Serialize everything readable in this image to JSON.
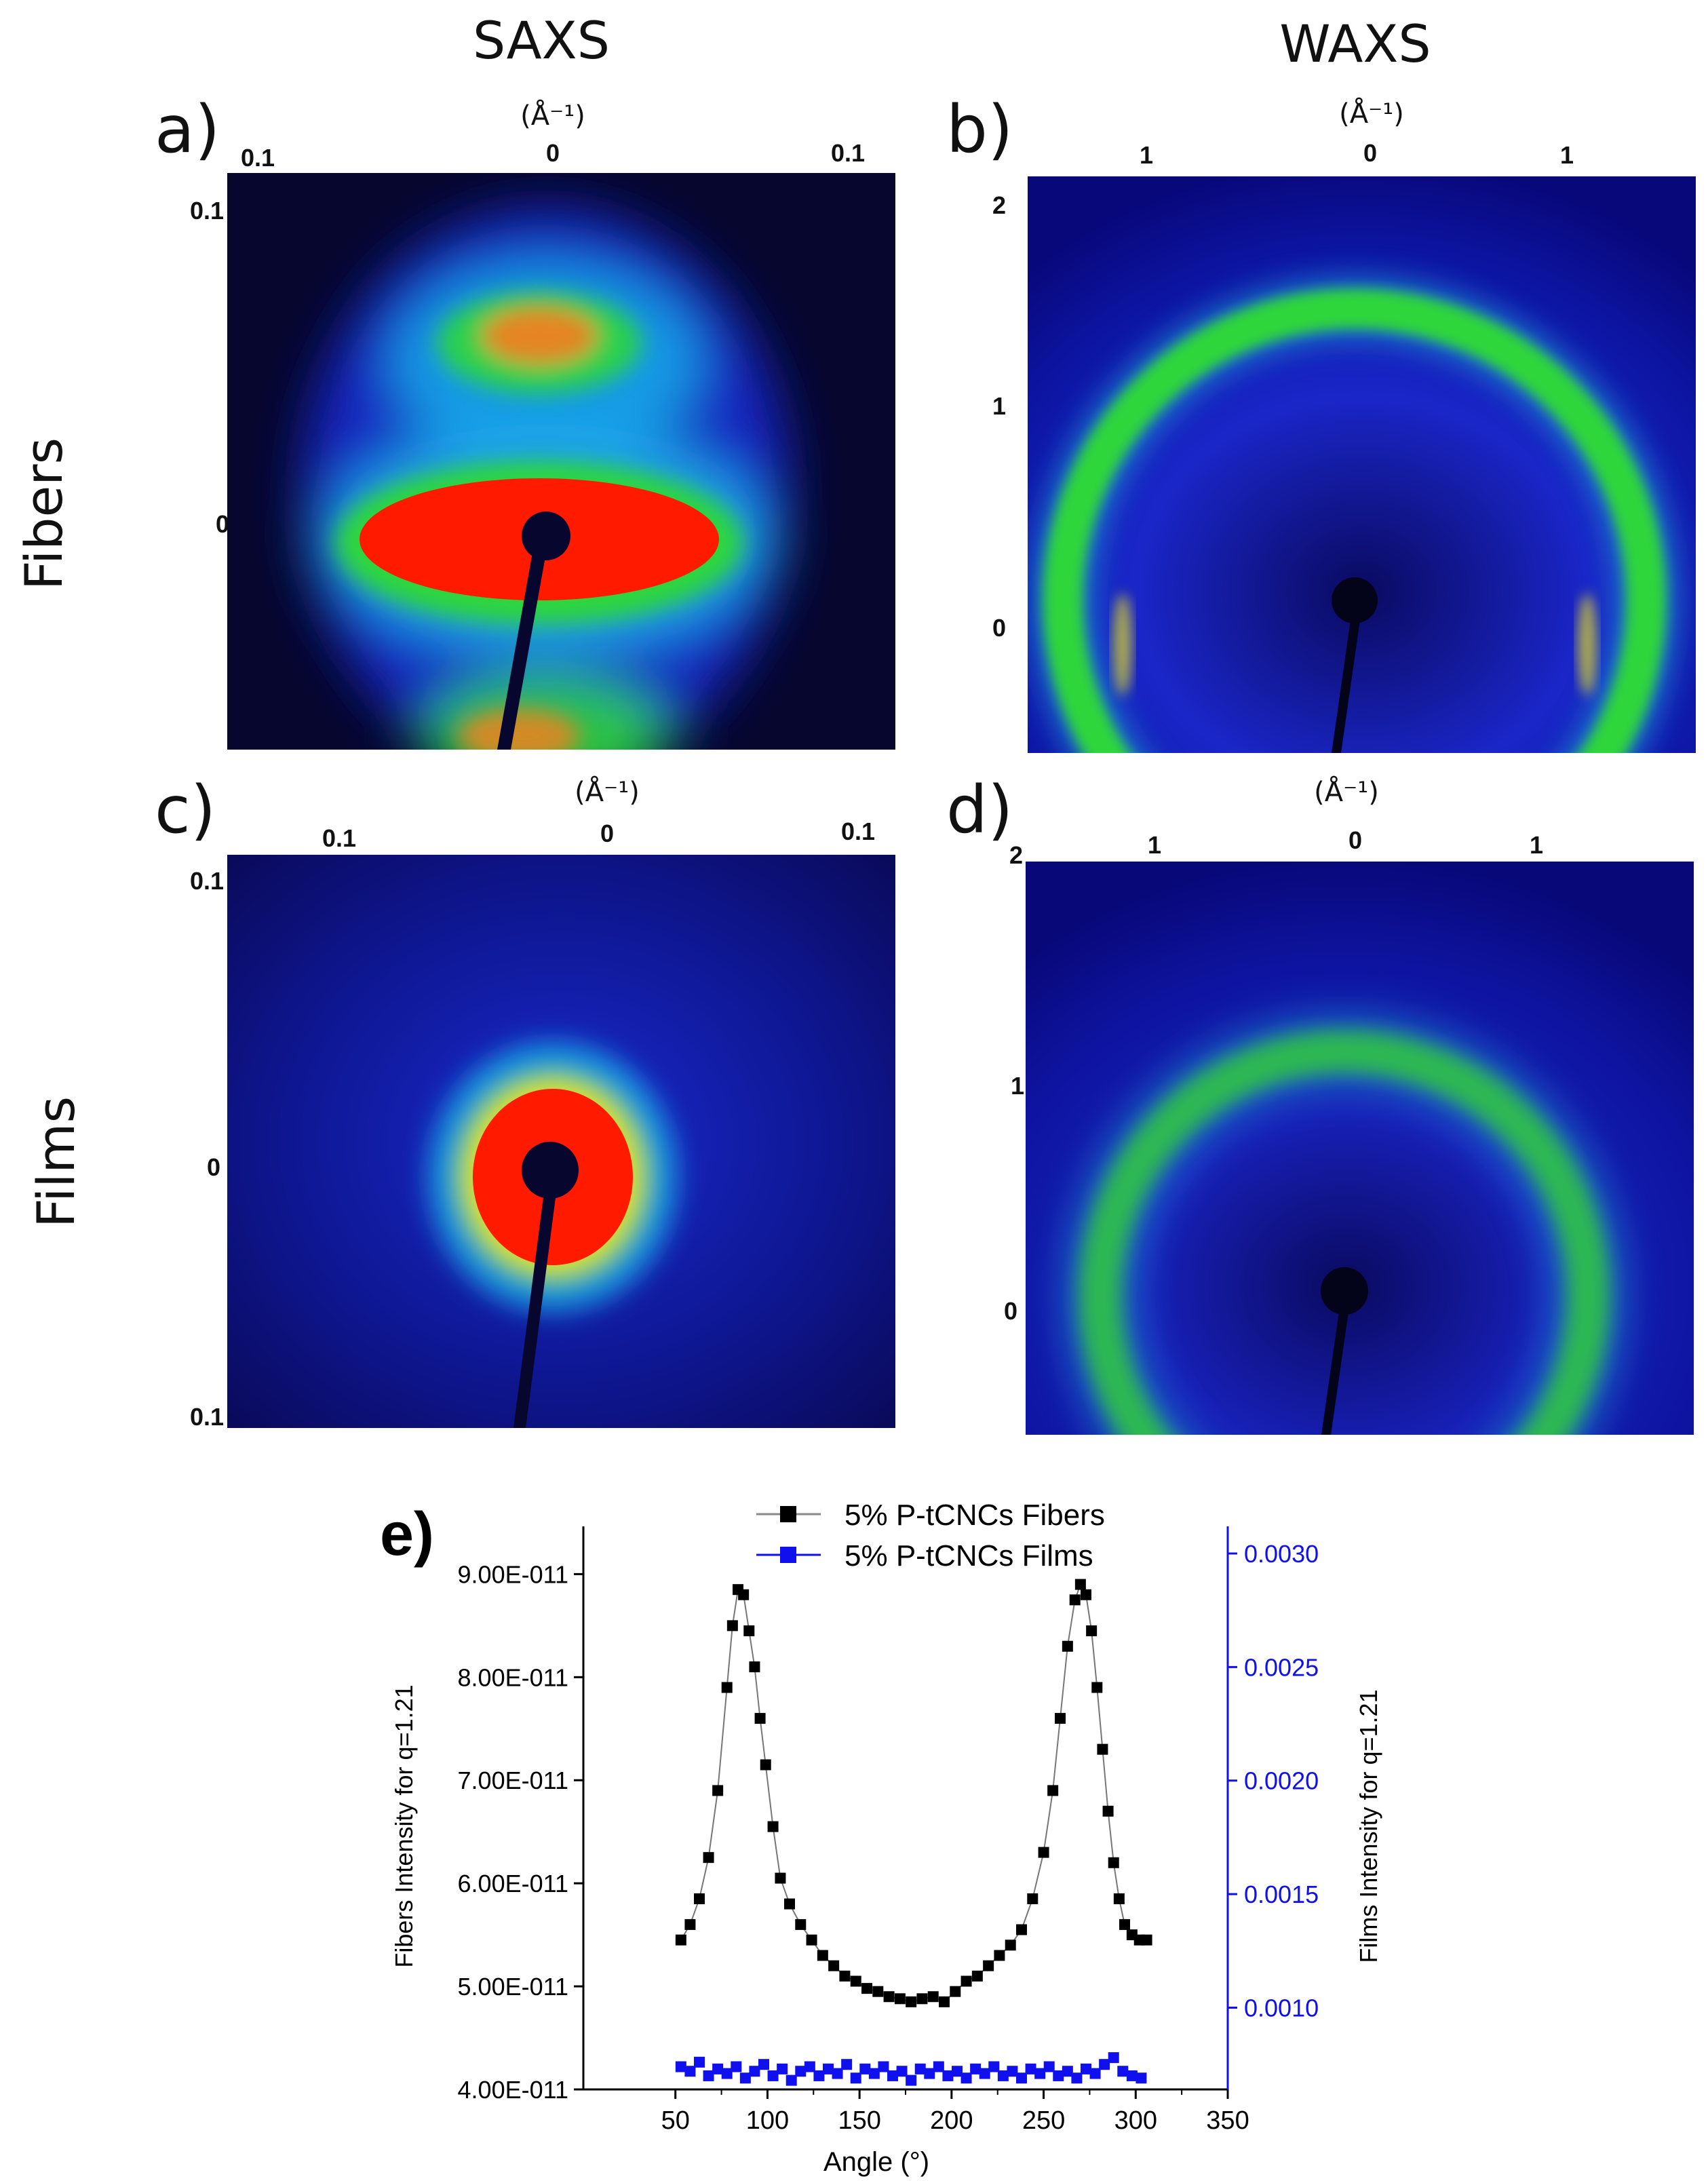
{
  "header": {
    "col_saxs": "SAXS",
    "col_waxs": "WAXS",
    "row_fibers": "Fibers",
    "row_films": "Films"
  },
  "panels": {
    "a": {
      "label": "a)",
      "unit": "(Å⁻¹)",
      "top_ticks": [
        "0.1",
        "0",
        "0.1"
      ],
      "side_ticks": [
        "0.1",
        "0"
      ]
    },
    "b": {
      "label": "b)",
      "unit": "(Å⁻¹)",
      "top_ticks": [
        "1",
        "0",
        "1"
      ],
      "side_ticks": [
        "2",
        "1",
        "0"
      ]
    },
    "c": {
      "label": "c)",
      "unit": "(Å⁻¹)",
      "top_ticks": [
        "0.1",
        "0",
        "0.1"
      ],
      "side_ticks": [
        "0.1",
        "0",
        "0.1"
      ]
    },
    "d": {
      "label": "d)",
      "unit": "(Å⁻¹)",
      "top_ticks": [
        "1",
        "0",
        "1"
      ],
      "side_ticks": [
        "2",
        "1",
        "0"
      ]
    }
  },
  "colors": {
    "bg_dark": "#06062e",
    "blue": "#1a2ad0",
    "cyan": "#1aa8e8",
    "green": "#2fd63a",
    "yellow": "#e8e020",
    "orange": "#f08020",
    "red": "#ff1a00",
    "fibers_series": "#000000",
    "films_series": "#1010ee"
  },
  "chart_data": {
    "label": "e)",
    "type": "scatter",
    "xlabel": "Angle (°)",
    "ylabel_left": "Fibers Intensity for q=1.21",
    "ylabel_right": "Films Intensity for q=1.21",
    "xlim": [
      0,
      350
    ],
    "ylim_left": [
      4e-11,
      9.2e-11
    ],
    "ylim_right": [
      0.00064,
      0.003
    ],
    "x_ticks": [
      "50",
      "100",
      "150",
      "200",
      "250",
      "300",
      "350"
    ],
    "y_left_ticks": [
      "4.00E-011",
      "5.00E-011",
      "6.00E-011",
      "7.00E-011",
      "8.00E-011",
      "9.00E-011"
    ],
    "y_right_ticks": [
      "0.0010",
      "0.0015",
      "0.0020",
      "0.0025",
      "0.0030"
    ],
    "legend": [
      "5% P-tCNCs Fibers",
      "5% P-tCNCs Films"
    ],
    "series": [
      {
        "name": "5% P-tCNCs Fibers",
        "axis": "left",
        "x": [
          53,
          58,
          63,
          68,
          73,
          78,
          81,
          84,
          87,
          90,
          93,
          96,
          99,
          103,
          107,
          112,
          118,
          124,
          130,
          136,
          142,
          148,
          154,
          160,
          166,
          172,
          178,
          184,
          190,
          196,
          202,
          208,
          214,
          220,
          226,
          232,
          238,
          244,
          250,
          255,
          259,
          263,
          267,
          270,
          273,
          276,
          279,
          282,
          285,
          288,
          291,
          294,
          298,
          302,
          306
        ],
        "y": [
          5.45e-11,
          5.6e-11,
          5.85e-11,
          6.25e-11,
          6.9e-11,
          7.9e-11,
          8.5e-11,
          8.85e-11,
          8.8e-11,
          8.45e-11,
          8.1e-11,
          7.6e-11,
          7.15e-11,
          6.55e-11,
          6.05e-11,
          5.8e-11,
          5.6e-11,
          5.45e-11,
          5.3e-11,
          5.2e-11,
          5.1e-11,
          5.05e-11,
          4.98e-11,
          4.95e-11,
          4.9e-11,
          4.88e-11,
          4.85e-11,
          4.88e-11,
          4.9e-11,
          4.85e-11,
          4.95e-11,
          5.05e-11,
          5.1e-11,
          5.2e-11,
          5.3e-11,
          5.4e-11,
          5.55e-11,
          5.85e-11,
          6.3e-11,
          6.9e-11,
          7.6e-11,
          8.3e-11,
          8.75e-11,
          8.9e-11,
          8.8e-11,
          8.45e-11,
          7.9e-11,
          7.3e-11,
          6.7e-11,
          6.2e-11,
          5.85e-11,
          5.6e-11,
          5.5e-11,
          5.45e-11,
          5.45e-11
        ]
      },
      {
        "name": "5% P-tCNCs Films",
        "axis": "right",
        "x": [
          53,
          58,
          63,
          68,
          73,
          78,
          83,
          88,
          93,
          98,
          103,
          108,
          113,
          118,
          123,
          128,
          133,
          138,
          143,
          148,
          153,
          158,
          163,
          168,
          173,
          178,
          183,
          188,
          193,
          198,
          203,
          208,
          213,
          218,
          223,
          228,
          233,
          238,
          243,
          248,
          253,
          258,
          263,
          268,
          273,
          278,
          283,
          288,
          293,
          298,
          303
        ],
        "y": [
          0.00074,
          0.00072,
          0.00076,
          0.0007,
          0.00073,
          0.00071,
          0.00074,
          0.00069,
          0.00072,
          0.00075,
          0.0007,
          0.00073,
          0.00068,
          0.00072,
          0.00074,
          0.0007,
          0.00073,
          0.00071,
          0.00075,
          0.00069,
          0.00073,
          0.00071,
          0.00074,
          0.0007,
          0.00072,
          0.00068,
          0.00073,
          0.00071,
          0.00074,
          0.0007,
          0.00072,
          0.00069,
          0.00073,
          0.00071,
          0.00074,
          0.0007,
          0.00072,
          0.00069,
          0.00073,
          0.00071,
          0.00074,
          0.0007,
          0.00072,
          0.00069,
          0.00073,
          0.00071,
          0.00075,
          0.00078,
          0.00072,
          0.0007,
          0.00069
        ]
      }
    ]
  }
}
